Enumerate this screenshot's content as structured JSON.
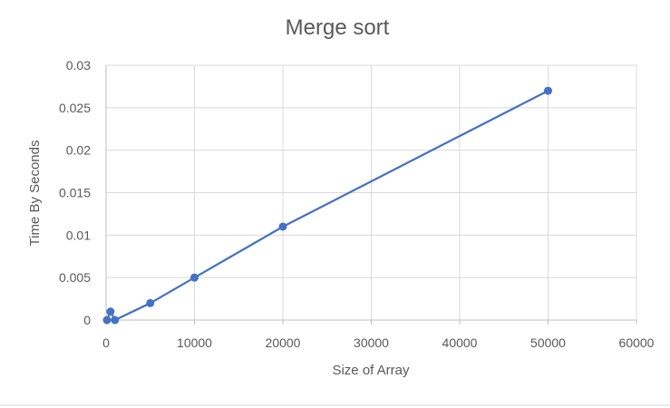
{
  "chart_data": {
    "type": "scatter",
    "title": "Merge sort",
    "xlabel": "Size of Array",
    "ylabel": "Time By Seconds",
    "xlim": [
      0,
      60000
    ],
    "ylim": [
      0,
      0.03
    ],
    "x_ticks": [
      "0",
      "10000",
      "20000",
      "30000",
      "40000",
      "50000",
      "60000"
    ],
    "y_ticks": [
      "0",
      "0.005",
      "0.01",
      "0.015",
      "0.02",
      "0.025",
      "0.03"
    ],
    "grid": true,
    "legend": "none",
    "series": [
      {
        "color": "#4472C4",
        "points": [
          {
            "x": 100,
            "y": 0
          },
          {
            "x": 500,
            "y": 0.001
          },
          {
            "x": 1000,
            "y": 0
          },
          {
            "x": 5000,
            "y": 0.002
          },
          {
            "x": 10000,
            "y": 0.005
          },
          {
            "x": 20000,
            "y": 0.011
          },
          {
            "x": 50000,
            "y": 0.027
          }
        ]
      }
    ]
  }
}
